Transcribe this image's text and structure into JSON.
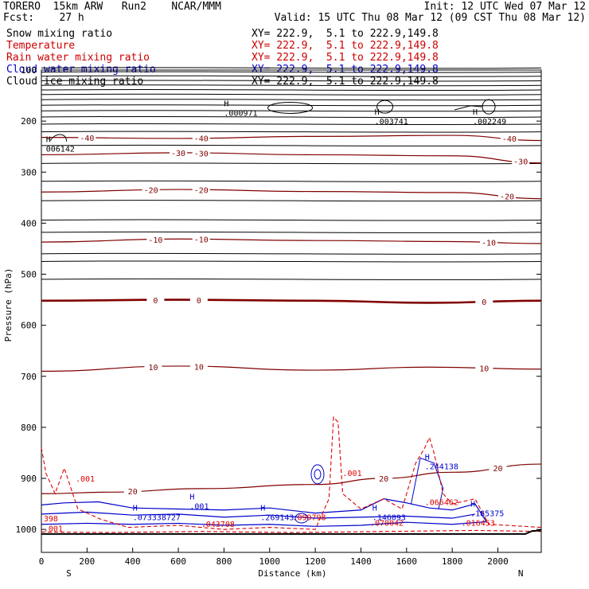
{
  "header": {
    "left_line1": "TORERO  15km ARW   Run2    NCAR/MMM",
    "left_line2": "Fcst:    27 h",
    "right_line1": "Init: 12 UTC Wed 07 Mar 12",
    "right_line2": "Valid: 15 UTC Thu 08 Mar 12 (09 CST Thu 08 Mar 12)"
  },
  "legend": [
    {
      "label": "Snow mixing ratio",
      "value": "",
      "color": "#000000"
    },
    {
      "label": "Temperature",
      "value": "XY= 222.9,  5.1 to 222.9,149.8",
      "color": "#cc0000"
    },
    {
      "label": "Rain water mixing ratio",
      "value": "XY= 222.9,  5.1 to 222.9,149.8",
      "color": "#cc0000"
    },
    {
      "label": "Cloud water mixing ratio",
      "value": "XY= 222.9,  5.1 to 222.9,149.8",
      "color": "#0000cc"
    },
    {
      "label": "Cloud ice mixing ratio",
      "value": "XY= 222.9,  5.1 to 222.9,149.8",
      "color": "#000000"
    }
  ],
  "snow_value": "XY= 222.9,  5.1 to 222.9,149.8",
  "colors": {
    "temperature": "#800000",
    "rain": "#dd0000",
    "cloud_water": "#0000cc",
    "cloud_ice": "#000000",
    "terrain": "#000000"
  },
  "chart_data": {
    "type": "line",
    "xlabel": "Distance (km)",
    "ylabel": "Pressure (hPa)",
    "xlim": [
      0,
      2190
    ],
    "ylim": [
      1045,
      100
    ],
    "x_ticks": [
      0,
      200,
      400,
      600,
      800,
      1000,
      1200,
      1400,
      1600,
      1800,
      2000
    ],
    "y_ticks": [
      100,
      200,
      300,
      400,
      500,
      600,
      700,
      800,
      900,
      1000
    ],
    "x_end_labels": {
      "left": "S",
      "right": "N"
    },
    "temperature_isotherms": [
      {
        "label": "-40",
        "p": [
          [
            0,
            232
          ],
          [
            600,
            234
          ],
          [
            1200,
            230
          ],
          [
            1800,
            228
          ],
          [
            2190,
            238
          ]
        ],
        "label_x": [
          200,
          700,
          2050
        ]
      },
      {
        "label": "-30",
        "p": [
          [
            0,
            266
          ],
          [
            600,
            262
          ],
          [
            1200,
            266
          ],
          [
            1800,
            268
          ],
          [
            2190,
            282
          ]
        ],
        "label_x": [
          600,
          700,
          2100
        ]
      },
      {
        "label": "-20",
        "p": [
          [
            0,
            339
          ],
          [
            600,
            334
          ],
          [
            1200,
            338
          ],
          [
            1800,
            340
          ],
          [
            2190,
            352
          ]
        ],
        "label_x": [
          480,
          700,
          2040
        ]
      },
      {
        "label": "-10",
        "p": [
          [
            0,
            437
          ],
          [
            600,
            431
          ],
          [
            1200,
            434
          ],
          [
            1800,
            436
          ],
          [
            2190,
            440
          ]
        ],
        "label_x": [
          500,
          700,
          1960
        ]
      },
      {
        "label": "0",
        "p": [
          [
            0,
            552
          ],
          [
            600,
            550
          ],
          [
            1200,
            552
          ],
          [
            1700,
            556
          ],
          [
            2190,
            552
          ]
        ],
        "label_x": [
          500,
          690,
          1940
        ]
      },
      {
        "label": "10",
        "p": [
          [
            0,
            690
          ],
          [
            600,
            680
          ],
          [
            1200,
            688
          ],
          [
            1700,
            682
          ],
          [
            2190,
            686
          ]
        ],
        "label_x": [
          490,
          690,
          1940
        ]
      },
      {
        "label": "20",
        "p": [
          [
            0,
            930
          ],
          [
            300,
            927
          ],
          [
            700,
            920
          ],
          [
            1200,
            912
          ],
          [
            1500,
            900
          ],
          [
            1800,
            888
          ],
          [
            2190,
            872
          ]
        ],
        "label_x": [
          400,
          1500,
          2000
        ]
      }
    ],
    "cloud_ice_maxima": [
      {
        "label": ".000971",
        "x": 800,
        "p": 190
      },
      {
        "label": ".003741",
        "x": 1460,
        "p": 206
      },
      {
        "label": ".002249",
        "x": 1890,
        "p": 206
      },
      {
        "label": "006142",
        "x": 20,
        "p": 260
      }
    ],
    "cloud_water_maxima": [
      {
        "label": ".244138",
        "x": 1680,
        "p": 882
      },
      {
        "label": ".185375",
        "x": 1880,
        "p": 974
      },
      {
        "label": ".146093",
        "x": 1450,
        "p": 982
      },
      {
        "label": ".269143",
        "x": 960,
        "p": 982
      },
      {
        "label": ".073338727",
        "x": 400,
        "p": 982
      },
      {
        "label": ".001",
        "x": 650,
        "p": 960
      }
    ],
    "rain_maxima": [
      {
        "label": ".001",
        "x": 150,
        "p": 906
      },
      {
        "label": ".001",
        "x": 1320,
        "p": 895
      },
      {
        "label": ".066462",
        "x": 1680,
        "p": 952
      },
      {
        "label": ".043708",
        "x": 700,
        "p": 995
      },
      {
        "label": ".099798",
        "x": 1100,
        "p": 982
      },
      {
        "label": ".070042",
        "x": 1440,
        "p": 993
      },
      {
        "label": ".016453",
        "x": 1840,
        "p": 993
      },
      {
        "label": "398",
        "x": 10,
        "p": 984
      },
      {
        "label": ".001",
        "x": 10,
        "p": 1004
      }
    ]
  }
}
